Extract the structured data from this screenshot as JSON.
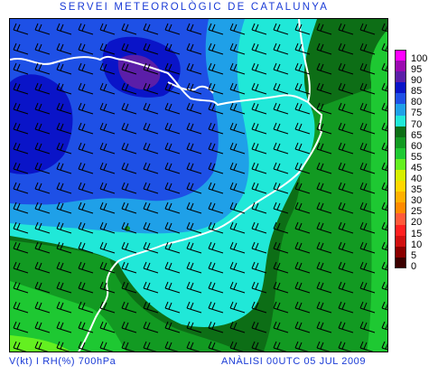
{
  "header": {
    "title": "SERVEI METEOROLÒGIC DE CATALUNYA"
  },
  "footer": {
    "left": "V(kt) I RH(%) 700hPa",
    "right": "ANÀLISI 00UTC 05 JUL 2009"
  },
  "legend": {
    "items": [
      {
        "label": "100",
        "color": "#ff00ff"
      },
      {
        "label": "95",
        "color": "#9a0ab0"
      },
      {
        "label": "90",
        "color": "#5b1ea8"
      },
      {
        "label": "85",
        "color": "#0a14c8"
      },
      {
        "label": "80",
        "color": "#1e50e6"
      },
      {
        "label": "75",
        "color": "#1fa0e8"
      },
      {
        "label": "70",
        "color": "#20e8d8"
      },
      {
        "label": "65",
        "color": "#0d6e16"
      },
      {
        "label": "60",
        "color": "#129a22"
      },
      {
        "label": "55",
        "color": "#1ec832"
      },
      {
        "label": "45",
        "color": "#64f020"
      },
      {
        "label": "40",
        "color": "#d6f000"
      },
      {
        "label": "35",
        "color": "#ffd700"
      },
      {
        "label": "30",
        "color": "#ffb000"
      },
      {
        "label": "25",
        "color": "#ff8a00"
      },
      {
        "label": "20",
        "color": "#ff5a3a"
      },
      {
        "label": "15",
        "color": "#ff2020"
      },
      {
        "label": "10",
        "color": "#d01010"
      },
      {
        "label": "5",
        "color": "#8a0000"
      },
      {
        "label": "0",
        "color": "#3a0000"
      }
    ]
  }
}
